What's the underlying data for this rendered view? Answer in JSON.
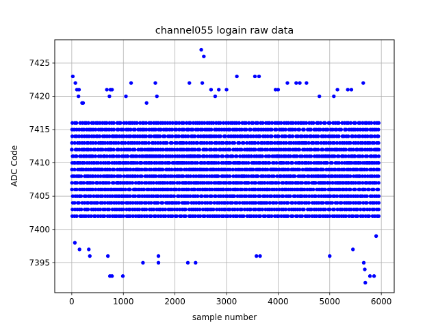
{
  "chart_data": {
    "type": "scatter",
    "title": "channel055 logain raw data",
    "xlabel": "sample number",
    "ylabel": "ADC Code",
    "xlim": [
      -330,
      6250
    ],
    "ylim": [
      7390.5,
      7428.5
    ],
    "x_ticks": [
      0,
      1000,
      2000,
      3000,
      4000,
      5000,
      6000
    ],
    "y_ticks": [
      7395,
      7400,
      7405,
      7410,
      7415,
      7420,
      7425
    ],
    "grid": true,
    "marker_color": "#0000ff",
    "x_range": [
      0,
      5950
    ],
    "core_range": [
      7402,
      7416
    ],
    "outliers": [
      {
        "x": 20,
        "y": 7423
      },
      {
        "x": 70,
        "y": 7422
      },
      {
        "x": 100,
        "y": 7421
      },
      {
        "x": 130,
        "y": 7420
      },
      {
        "x": 140,
        "y": 7421
      },
      {
        "x": 200,
        "y": 7419
      },
      {
        "x": 220,
        "y": 7419
      },
      {
        "x": 60,
        "y": 7398
      },
      {
        "x": 150,
        "y": 7397
      },
      {
        "x": 330,
        "y": 7397
      },
      {
        "x": 350,
        "y": 7396
      },
      {
        "x": 700,
        "y": 7396
      },
      {
        "x": 680,
        "y": 7421
      },
      {
        "x": 730,
        "y": 7420
      },
      {
        "x": 740,
        "y": 7393
      },
      {
        "x": 780,
        "y": 7393
      },
      {
        "x": 750,
        "y": 7421
      },
      {
        "x": 780,
        "y": 7421
      },
      {
        "x": 990,
        "y": 7393
      },
      {
        "x": 1050,
        "y": 7420
      },
      {
        "x": 1150,
        "y": 7422
      },
      {
        "x": 1380,
        "y": 7395
      },
      {
        "x": 1450,
        "y": 7419
      },
      {
        "x": 1620,
        "y": 7422
      },
      {
        "x": 1650,
        "y": 7420
      },
      {
        "x": 1680,
        "y": 7396
      },
      {
        "x": 1680,
        "y": 7395
      },
      {
        "x": 2250,
        "y": 7395
      },
      {
        "x": 2280,
        "y": 7422
      },
      {
        "x": 2400,
        "y": 7395
      },
      {
        "x": 2510,
        "y": 7427
      },
      {
        "x": 2560,
        "y": 7426
      },
      {
        "x": 2530,
        "y": 7422
      },
      {
        "x": 2700,
        "y": 7421
      },
      {
        "x": 2780,
        "y": 7420
      },
      {
        "x": 2850,
        "y": 7421
      },
      {
        "x": 3000,
        "y": 7421
      },
      {
        "x": 3200,
        "y": 7423
      },
      {
        "x": 3550,
        "y": 7423
      },
      {
        "x": 3630,
        "y": 7423
      },
      {
        "x": 3580,
        "y": 7396
      },
      {
        "x": 3650,
        "y": 7396
      },
      {
        "x": 3950,
        "y": 7421
      },
      {
        "x": 4000,
        "y": 7421
      },
      {
        "x": 4180,
        "y": 7422
      },
      {
        "x": 4350,
        "y": 7422
      },
      {
        "x": 4420,
        "y": 7422
      },
      {
        "x": 4550,
        "y": 7422
      },
      {
        "x": 4800,
        "y": 7420
      },
      {
        "x": 5000,
        "y": 7396
      },
      {
        "x": 5080,
        "y": 7420
      },
      {
        "x": 5150,
        "y": 7421
      },
      {
        "x": 5350,
        "y": 7421
      },
      {
        "x": 5420,
        "y": 7421
      },
      {
        "x": 5450,
        "y": 7397
      },
      {
        "x": 5650,
        "y": 7422
      },
      {
        "x": 5660,
        "y": 7395
      },
      {
        "x": 5680,
        "y": 7394
      },
      {
        "x": 5690,
        "y": 7392
      },
      {
        "x": 5780,
        "y": 7393
      },
      {
        "x": 5860,
        "y": 7393
      },
      {
        "x": 5900,
        "y": 7399
      }
    ]
  }
}
